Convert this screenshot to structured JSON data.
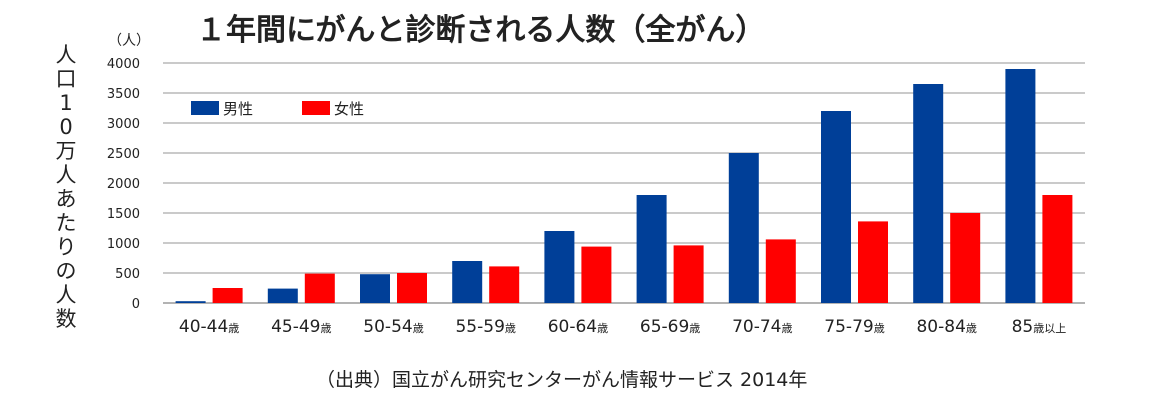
{
  "chart_data": {
    "type": "bar",
    "title": "１年間にがんと診断される人数（全がん）",
    "unit_label": "（人）",
    "ylabel": "人口10万人あたりの人数",
    "source": "（出典）国立がん研究センターがん情報サービス 2014年",
    "ylim": [
      0,
      4000
    ],
    "yticks": [
      "4000",
      "3500",
      "3000",
      "2500",
      "2000",
      "1500",
      "1000",
      "500",
      "0"
    ],
    "grid": true,
    "legend_position": "top-left",
    "categories": [
      {
        "main": "40-44",
        "suffix": "歳"
      },
      {
        "main": "45-49",
        "suffix": "歳"
      },
      {
        "main": "50-54",
        "suffix": "歳"
      },
      {
        "main": "55-59",
        "suffix": "歳"
      },
      {
        "main": "60-64",
        "suffix": "歳"
      },
      {
        "main": "65-69",
        "suffix": "歳"
      },
      {
        "main": "70-74",
        "suffix": "歳"
      },
      {
        "main": "75-79",
        "suffix": "歳"
      },
      {
        "main": "80-84",
        "suffix": "歳"
      },
      {
        "main": "85",
        "suffix": "歳以上"
      }
    ],
    "series": [
      {
        "name": "男性",
        "color": "#003f98",
        "values": [
          30,
          240,
          480,
          700,
          1200,
          1800,
          2500,
          3200,
          3650,
          3900
        ]
      },
      {
        "name": "女性",
        "color": "#ff0000",
        "values": [
          250,
          490,
          500,
          610,
          940,
          960,
          1060,
          1360,
          1500,
          1800
        ]
      }
    ]
  }
}
